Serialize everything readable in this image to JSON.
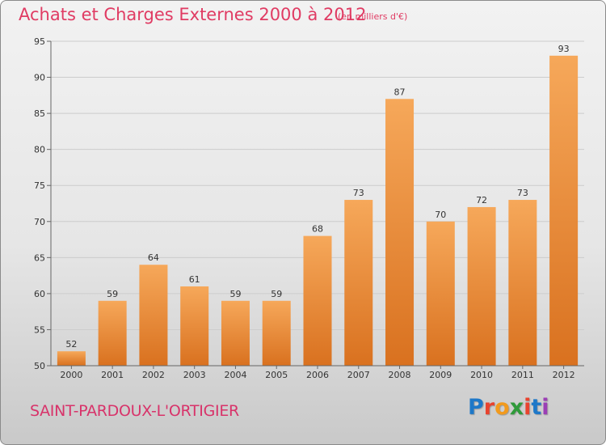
{
  "header": {
    "title": "Achats et Charges Externes 2000 à 2012",
    "unit": "(en milliers d'€)"
  },
  "footer": {
    "commune": "SAINT-PARDOUX-L'ORTIGIER",
    "logo_text": "Proxiti",
    "logo_colors": [
      "#1e78c8",
      "#e8432e",
      "#f29a1d",
      "#2f9a3a",
      "#e8432e",
      "#1e78c8",
      "#9b3fb5"
    ]
  },
  "colors": {
    "bar_top": "#f6a85a",
    "bar_bottom": "#d9711f",
    "title": "#e03b63",
    "gridline": "#cccccc",
    "axis": "#666666"
  },
  "chart_data": {
    "type": "bar",
    "title": "Achats et Charges Externes 2000 à 2012",
    "subtitle": "(en milliers d'€)",
    "categories": [
      "2000",
      "2001",
      "2002",
      "2003",
      "2004",
      "2005",
      "2006",
      "2007",
      "2008",
      "2009",
      "2010",
      "2011",
      "2012"
    ],
    "values": [
      52,
      59,
      64,
      61,
      59,
      59,
      68,
      73,
      87,
      70,
      72,
      73,
      93
    ],
    "ylim": [
      50,
      95
    ],
    "yticks": [
      50,
      55,
      60,
      65,
      70,
      75,
      80,
      85,
      90,
      95
    ],
    "grid": true
  }
}
